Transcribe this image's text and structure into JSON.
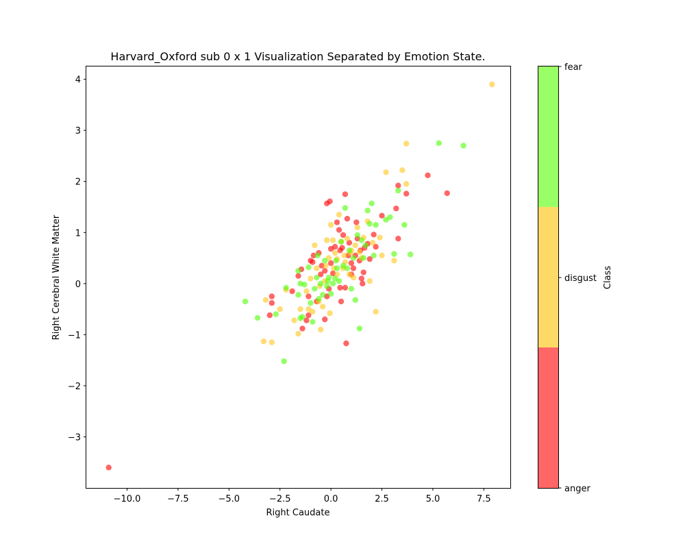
{
  "chart_data": {
    "type": "scatter",
    "title": "Harvard_Oxford sub 0 x 1 Visualization Separated by Emotion State.",
    "xlabel": "Right Caudate",
    "ylabel": "Right Cerebral White Matter",
    "xlim": [
      -12.0,
      8.8
    ],
    "ylim": [
      -4.0,
      4.25
    ],
    "xticks": [
      -10.0,
      -7.5,
      -5.0,
      -2.5,
      0.0,
      2.5,
      5.0,
      7.5
    ],
    "xtick_labels": [
      "−10.0",
      "−7.5",
      "−5.0",
      "−2.5",
      "0.0",
      "2.5",
      "5.0",
      "7.5"
    ],
    "yticks": [
      -3,
      -2,
      -1,
      0,
      1,
      2,
      3,
      4
    ],
    "ytick_labels": [
      "−3",
      "−2",
      "−1",
      "0",
      "1",
      "2",
      "3",
      "4"
    ],
    "grid": false,
    "colorbar": {
      "label": "Class",
      "classes": [
        "anger",
        "disgust",
        "fear"
      ],
      "colors": [
        "#ff6666",
        "#ffd966",
        "#99ff66"
      ]
    },
    "series": [
      {
        "name": "anger",
        "color": "#ff0000",
        "points": [
          [
            -10.9,
            -3.6
          ],
          [
            -2.9,
            -0.25
          ],
          [
            -2.9,
            -0.38
          ],
          [
            -3.0,
            -0.62
          ],
          [
            -1.9,
            -0.15
          ],
          [
            -1.6,
            0.15
          ],
          [
            -1.45,
            0.28
          ],
          [
            -1.4,
            -0.88
          ],
          [
            -1.2,
            -0.72
          ],
          [
            -1.1,
            -0.25
          ],
          [
            -1.1,
            -0.62
          ],
          [
            -1.0,
            0.45
          ],
          [
            -0.9,
            0.42
          ],
          [
            -0.85,
            0.55
          ],
          [
            -0.7,
            -0.35
          ],
          [
            -0.6,
            0.6
          ],
          [
            -0.5,
            0.18
          ],
          [
            -0.45,
            0.35
          ],
          [
            -0.3,
            0.25
          ],
          [
            -0.3,
            -0.7
          ],
          [
            -0.2,
            1.57
          ],
          [
            -0.2,
            -0.25
          ],
          [
            -0.1,
            -0.1
          ],
          [
            -0.05,
            1.61
          ],
          [
            0.0,
            0.68
          ],
          [
            0.0,
            0.4
          ],
          [
            0.1,
            0.2
          ],
          [
            0.2,
            0.72
          ],
          [
            0.3,
            1.2
          ],
          [
            0.4,
            1.05
          ],
          [
            0.45,
            0.65
          ],
          [
            0.45,
            -0.08
          ],
          [
            0.5,
            -0.35
          ],
          [
            0.55,
            0.7
          ],
          [
            0.6,
            0.95
          ],
          [
            0.7,
            1.75
          ],
          [
            0.7,
            -0.08
          ],
          [
            0.75,
            -1.17
          ],
          [
            0.8,
            1.27
          ],
          [
            0.85,
            0.55
          ],
          [
            0.9,
            0.8
          ],
          [
            1.0,
            0.4
          ],
          [
            1.0,
            0.18
          ],
          [
            1.1,
            0.3
          ],
          [
            1.2,
            0.55
          ],
          [
            1.25,
            1.2
          ],
          [
            1.3,
            0.88
          ],
          [
            1.4,
            0.45
          ],
          [
            1.45,
            0.65
          ],
          [
            1.5,
            0.1
          ],
          [
            1.55,
            0.0
          ],
          [
            1.6,
            0.22
          ],
          [
            1.65,
            0.7
          ],
          [
            1.8,
            0.78
          ],
          [
            1.9,
            0.48
          ],
          [
            2.1,
            0.96
          ],
          [
            2.2,
            0.72
          ],
          [
            2.5,
            1.33
          ],
          [
            3.2,
            1.47
          ],
          [
            3.3,
            1.92
          ],
          [
            3.3,
            0.88
          ],
          [
            3.7,
            1.76
          ],
          [
            4.75,
            2.12
          ],
          [
            5.7,
            1.77
          ]
        ]
      },
      {
        "name": "disgust",
        "color": "#ffc61a",
        "points": [
          [
            7.9,
            3.9
          ],
          [
            3.7,
            2.74
          ],
          [
            3.7,
            1.95
          ],
          [
            3.5,
            2.22
          ],
          [
            2.7,
            2.18
          ],
          [
            3.1,
            0.45
          ],
          [
            2.5,
            0.55
          ],
          [
            2.4,
            0.9
          ],
          [
            2.2,
            -0.55
          ],
          [
            1.9,
            0.05
          ],
          [
            1.8,
            1.22
          ],
          [
            1.6,
            0.9
          ],
          [
            1.4,
            0.62
          ],
          [
            1.3,
            1.1
          ],
          [
            1.2,
            0.75
          ],
          [
            1.1,
            0.12
          ],
          [
            1.0,
            0.65
          ],
          [
            0.9,
            0.18
          ],
          [
            0.8,
            0.88
          ],
          [
            0.7,
            0.42
          ],
          [
            0.6,
            0.3
          ],
          [
            0.5,
            0.82
          ],
          [
            0.4,
            1.35
          ],
          [
            0.3,
            0.48
          ],
          [
            0.3,
            0.18
          ],
          [
            0.2,
            0.6
          ],
          [
            0.1,
            0.85
          ],
          [
            0.0,
            1.15
          ],
          [
            -0.1,
            0.5
          ],
          [
            -0.2,
            0.85
          ],
          [
            -0.3,
            0.05
          ],
          [
            -0.4,
            -0.45
          ],
          [
            -0.5,
            -0.9
          ],
          [
            -0.6,
            -0.35
          ],
          [
            -0.7,
            0.3
          ],
          [
            -0.8,
            0.75
          ],
          [
            -0.9,
            -0.55
          ],
          [
            -1.0,
            0.1
          ],
          [
            -1.1,
            -0.5
          ],
          [
            -1.2,
            -0.15
          ],
          [
            -1.5,
            -0.5
          ],
          [
            -1.6,
            -0.98
          ],
          [
            -1.8,
            -0.72
          ],
          [
            -2.2,
            -0.12
          ],
          [
            -2.5,
            -0.5
          ],
          [
            -2.9,
            -1.15
          ],
          [
            -3.2,
            -0.32
          ],
          [
            -3.3,
            -1.13
          ],
          [
            -0.05,
            -0.58
          ],
          [
            0.15,
            0.3
          ],
          [
            -0.55,
            -0.05
          ],
          [
            1.5,
            0.5
          ],
          [
            0.95,
            0.6
          ],
          [
            2.05,
            0.8
          ],
          [
            0.65,
            0.55
          ],
          [
            -0.25,
            0.35
          ]
        ]
      },
      {
        "name": "fear",
        "color": "#4dff00",
        "points": [
          [
            5.3,
            2.75
          ],
          [
            6.5,
            2.7
          ],
          [
            3.3,
            1.82
          ],
          [
            3.6,
            1.15
          ],
          [
            3.9,
            0.57
          ],
          [
            3.1,
            0.58
          ],
          [
            2.9,
            1.3
          ],
          [
            2.7,
            1.25
          ],
          [
            2.2,
            1.15
          ],
          [
            2.0,
            1.57
          ],
          [
            1.9,
            1.17
          ],
          [
            1.8,
            1.43
          ],
          [
            1.7,
            0.75
          ],
          [
            1.5,
            0.85
          ],
          [
            1.4,
            -0.88
          ],
          [
            1.3,
            0.95
          ],
          [
            1.2,
            -0.32
          ],
          [
            1.1,
            0.5
          ],
          [
            1.0,
            -0.1
          ],
          [
            0.9,
            0.65
          ],
          [
            0.8,
            0.3
          ],
          [
            0.7,
            1.48
          ],
          [
            0.6,
            0.35
          ],
          [
            0.5,
            0.82
          ],
          [
            0.4,
            0.05
          ],
          [
            0.3,
            0.3
          ],
          [
            0.2,
            0.1
          ],
          [
            0.1,
            0.0
          ],
          [
            0.0,
            -0.2
          ],
          [
            -0.1,
            0.12
          ],
          [
            -0.2,
            -0.05
          ],
          [
            -0.3,
            0.45
          ],
          [
            -0.4,
            -0.22
          ],
          [
            -0.5,
            0.0
          ],
          [
            -0.6,
            -0.3
          ],
          [
            -0.7,
            0.12
          ],
          [
            -0.8,
            -0.1
          ],
          [
            -0.9,
            -0.75
          ],
          [
            -1.0,
            -0.38
          ],
          [
            -1.1,
            0.32
          ],
          [
            -1.3,
            -0.02
          ],
          [
            -1.4,
            -0.65
          ],
          [
            -1.5,
            0.0
          ],
          [
            -1.6,
            -0.22
          ],
          [
            -1.6,
            0.25
          ],
          [
            -2.2,
            -0.08
          ],
          [
            -2.3,
            -1.52
          ],
          [
            -2.7,
            -0.6
          ],
          [
            -3.6,
            -0.67
          ],
          [
            -4.2,
            -0.35
          ],
          [
            -1.5,
            -0.68
          ],
          [
            -0.65,
            0.55
          ],
          [
            0.25,
            0.45
          ],
          [
            1.6,
            0.5
          ],
          [
            2.1,
            0.55
          ],
          [
            -0.15,
            0.05
          ]
        ]
      }
    ]
  }
}
